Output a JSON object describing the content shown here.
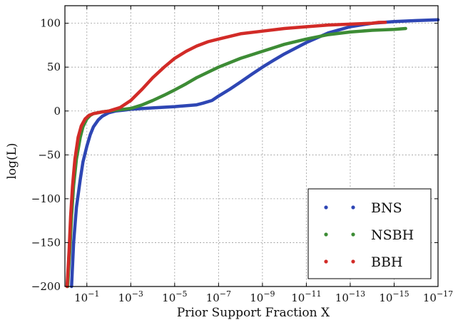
{
  "chart_data": {
    "type": "line",
    "xlabel": "Prior Support Fraction X",
    "ylabel": "log(L)",
    "x_scale": "log-reversed",
    "xlim": [
      1,
      1e-17
    ],
    "ylim": [
      -200,
      120
    ],
    "grid": true,
    "legend_position": "bottom-right",
    "x_ticks": [
      {
        "value": 0.1,
        "mantissa": "10",
        "exp": "−1"
      },
      {
        "value": 0.001,
        "mantissa": "10",
        "exp": "−3"
      },
      {
        "value": 1e-05,
        "mantissa": "10",
        "exp": "−5"
      },
      {
        "value": 1e-07,
        "mantissa": "10",
        "exp": "−7"
      },
      {
        "value": 1e-09,
        "mantissa": "10",
        "exp": "−9"
      },
      {
        "value": 1e-11,
        "mantissa": "10",
        "exp": "−11"
      },
      {
        "value": 1e-13,
        "mantissa": "10",
        "exp": "−13"
      },
      {
        "value": 1e-15,
        "mantissa": "10",
        "exp": "−15"
      },
      {
        "value": 1e-17,
        "mantissa": "10",
        "exp": "−17"
      }
    ],
    "y_ticks": [
      {
        "value": 100,
        "label": "100"
      },
      {
        "value": 50,
        "label": "50"
      },
      {
        "value": 0,
        "label": "0"
      },
      {
        "value": -50,
        "label": "−50"
      },
      {
        "value": -100,
        "label": "−100"
      },
      {
        "value": -150,
        "label": "−150"
      },
      {
        "value": -200,
        "label": "−200"
      }
    ],
    "series": [
      {
        "name": "BNS",
        "color": "#2e46b4",
        "x": [
          0.5,
          0.4,
          0.3,
          0.2,
          0.15,
          0.1,
          0.07,
          0.05,
          0.03,
          0.02,
          0.01,
          0.005,
          0.002,
          0.001,
          0.0001,
          1e-05,
          1e-06,
          5e-07,
          2e-07,
          1e-07,
          3e-08,
          1e-08,
          3e-09,
          1e-09,
          3e-10,
          1e-10,
          1e-11,
          1e-12,
          1e-13,
          1e-14,
          1e-15,
          1e-16,
          1e-17
        ],
        "y": [
          -200,
          -150,
          -110,
          -78,
          -58,
          -40,
          -27,
          -18,
          -10,
          -6,
          -2,
          0,
          1,
          2,
          3.5,
          5,
          7,
          9,
          12,
          17,
          25,
          33,
          42,
          50,
          58,
          65,
          78,
          89,
          96,
          100,
          102,
          103,
          104
        ]
      },
      {
        "name": "NSBH",
        "color": "#3d8c35",
        "x": [
          0.75,
          0.6,
          0.5,
          0.4,
          0.3,
          0.2,
          0.15,
          0.1,
          0.07,
          0.05,
          0.02,
          0.01,
          0.001,
          0.0003,
          0.0001,
          3e-05,
          1e-05,
          3e-06,
          1e-06,
          1e-07,
          1e-08,
          1e-09,
          1e-10,
          1e-11,
          1e-12,
          1e-13,
          1e-14,
          1e-15,
          3e-16
        ],
        "y": [
          -200,
          -160,
          -120,
          -85,
          -55,
          -30,
          -18,
          -9,
          -5,
          -3,
          -1,
          0,
          3,
          7,
          12,
          18,
          24,
          31,
          38,
          50,
          60,
          68,
          76,
          82,
          87,
          90,
          92,
          93,
          94
        ]
      },
      {
        "name": "BBH",
        "color": "#d22b27",
        "x": [
          0.8,
          0.65,
          0.55,
          0.45,
          0.35,
          0.25,
          0.18,
          0.12,
          0.08,
          0.05,
          0.02,
          0.01,
          0.003,
          0.001,
          0.0003,
          0.0001,
          3e-05,
          1e-05,
          3e-06,
          1e-06,
          3e-07,
          1e-07,
          1e-08,
          1e-09,
          1e-10,
          1e-11,
          1e-12,
          1e-13,
          1e-14,
          5e-15,
          2.5e-15
        ],
        "y": [
          -200,
          -160,
          -120,
          -85,
          -55,
          -30,
          -17,
          -9,
          -5,
          -3,
          -1,
          0,
          4,
          12,
          25,
          38,
          50,
          60,
          68,
          74,
          79,
          82,
          88,
          91,
          94,
          96,
          98,
          99,
          100,
          101,
          101
        ]
      }
    ]
  }
}
